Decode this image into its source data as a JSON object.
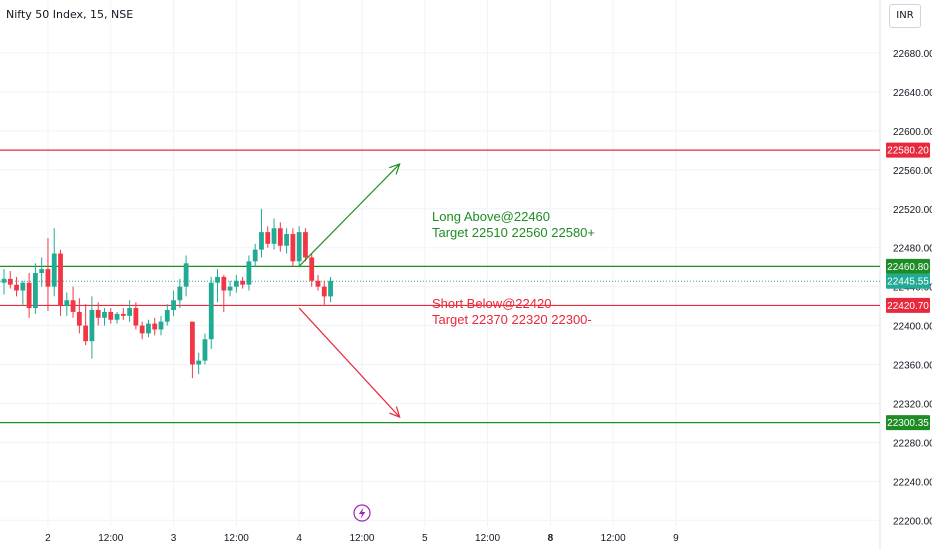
{
  "header": {
    "title": "Nifty 50 Index, 15, NSE",
    "currency_button": "INR"
  },
  "annotations": {
    "long_line1": "Long Above@22460",
    "long_line2": "Target 22510 22560 22580+",
    "short_line1": "Short Below@22420",
    "short_line2": "Target 22370 22320 22300-"
  },
  "event_marker": {
    "icon": "lightning-icon",
    "color": "#9c27b0"
  },
  "chart_data": {
    "type": "candlestick",
    "title": "Nifty 50 Index, 15, NSE",
    "y_axis": {
      "min": 22180,
      "max": 22720,
      "ticks": [
        "22200.00",
        "22240.00",
        "22280.00",
        "22320.00",
        "22360.00",
        "22400.00",
        "22440.00",
        "22480.00",
        "22520.00",
        "22560.00",
        "22600.00",
        "22640.00",
        "22680.00"
      ]
    },
    "x_axis": {
      "ticks": [
        {
          "label": "2",
          "bar": 7,
          "bold": false
        },
        {
          "label": "12:00",
          "bar": 17,
          "bold": false
        },
        {
          "label": "3",
          "bar": 27,
          "bold": false
        },
        {
          "label": "12:00",
          "bar": 37,
          "bold": false
        },
        {
          "label": "4",
          "bar": 47,
          "bold": false
        },
        {
          "label": "12:00",
          "bar": 57,
          "bold": false
        },
        {
          "label": "5",
          "bar": 67,
          "bold": false
        },
        {
          "label": "12:00",
          "bar": 77,
          "bold": false
        },
        {
          "label": "8",
          "bar": 87,
          "bold": true
        },
        {
          "label": "12:00",
          "bar": 97,
          "bold": false
        },
        {
          "label": "9",
          "bar": 107,
          "bold": false
        }
      ]
    },
    "horizontal_lines": [
      {
        "value": 22580.2,
        "label": "22580.20",
        "color": "#e8283c"
      },
      {
        "value": 22460.8,
        "label": "22460.80",
        "color": "#1e8c24"
      },
      {
        "value": 22420.7,
        "label": "22420.70",
        "color": "#e8283c"
      },
      {
        "value": 22300.35,
        "label": "22300.35",
        "color": "#1e8c24"
      }
    ],
    "last_price": {
      "value": 22445.55,
      "label": "22445.55",
      "color": "#22ab94"
    },
    "arrows": [
      {
        "color": "#1e8c24",
        "from_bar": 47,
        "from": 22461,
        "to_bar": 63,
        "to": 22566
      },
      {
        "color": "#e8283c",
        "from_bar": 47,
        "from": 22418,
        "to_bar": 63,
        "to": 22306
      }
    ],
    "colors": {
      "up": "#22ab94",
      "down": "#f23645",
      "grid": "#f0f3fa"
    },
    "candles": [
      {
        "o": 22444,
        "h": 22458,
        "l": 22432,
        "c": 22448
      },
      {
        "o": 22448,
        "h": 22456,
        "l": 22438,
        "c": 22442
      },
      {
        "o": 22442,
        "h": 22450,
        "l": 22430,
        "c": 22436
      },
      {
        "o": 22436,
        "h": 22446,
        "l": 22420,
        "c": 22444
      },
      {
        "o": 22444,
        "h": 22454,
        "l": 22408,
        "c": 22418
      },
      {
        "o": 22418,
        "h": 22464,
        "l": 22412,
        "c": 22454
      },
      {
        "o": 22454,
        "h": 22470,
        "l": 22440,
        "c": 22458
      },
      {
        "o": 22458,
        "h": 22490,
        "l": 22415,
        "c": 22440
      },
      {
        "o": 22440,
        "h": 22500,
        "l": 22430,
        "c": 22474
      },
      {
        "o": 22474,
        "h": 22478,
        "l": 22410,
        "c": 22420
      },
      {
        "o": 22420,
        "h": 22434,
        "l": 22410,
        "c": 22426
      },
      {
        "o": 22426,
        "h": 22440,
        "l": 22408,
        "c": 22414
      },
      {
        "o": 22414,
        "h": 22428,
        "l": 22392,
        "c": 22400
      },
      {
        "o": 22400,
        "h": 22422,
        "l": 22380,
        "c": 22384
      },
      {
        "o": 22384,
        "h": 22430,
        "l": 22366,
        "c": 22416
      },
      {
        "o": 22416,
        "h": 22424,
        "l": 22400,
        "c": 22408
      },
      {
        "o": 22408,
        "h": 22418,
        "l": 22400,
        "c": 22414
      },
      {
        "o": 22414,
        "h": 22418,
        "l": 22402,
        "c": 22406
      },
      {
        "o": 22406,
        "h": 22414,
        "l": 22402,
        "c": 22412
      },
      {
        "o": 22412,
        "h": 22418,
        "l": 22406,
        "c": 22410
      },
      {
        "o": 22410,
        "h": 22426,
        "l": 22404,
        "c": 22418
      },
      {
        "o": 22418,
        "h": 22424,
        "l": 22396,
        "c": 22400
      },
      {
        "o": 22400,
        "h": 22404,
        "l": 22386,
        "c": 22392
      },
      {
        "o": 22392,
        "h": 22406,
        "l": 22388,
        "c": 22402
      },
      {
        "o": 22402,
        "h": 22408,
        "l": 22390,
        "c": 22396
      },
      {
        "o": 22396,
        "h": 22410,
        "l": 22390,
        "c": 22404
      },
      {
        "o": 22404,
        "h": 22422,
        "l": 22400,
        "c": 22416
      },
      {
        "o": 22416,
        "h": 22436,
        "l": 22410,
        "c": 22426
      },
      {
        "o": 22426,
        "h": 22448,
        "l": 22418,
        "c": 22440
      },
      {
        "o": 22440,
        "h": 22472,
        "l": 22430,
        "c": 22464
      },
      {
        "o": 22404,
        "h": 22404,
        "l": 22346,
        "c": 22360
      },
      {
        "o": 22360,
        "h": 22372,
        "l": 22350,
        "c": 22364
      },
      {
        "o": 22364,
        "h": 22392,
        "l": 22360,
        "c": 22386
      },
      {
        "o": 22386,
        "h": 22450,
        "l": 22376,
        "c": 22444
      },
      {
        "o": 22444,
        "h": 22458,
        "l": 22424,
        "c": 22450
      },
      {
        "o": 22450,
        "h": 22452,
        "l": 22414,
        "c": 22436
      },
      {
        "o": 22436,
        "h": 22446,
        "l": 22430,
        "c": 22440
      },
      {
        "o": 22440,
        "h": 22452,
        "l": 22434,
        "c": 22446
      },
      {
        "o": 22446,
        "h": 22450,
        "l": 22438,
        "c": 22442
      },
      {
        "o": 22442,
        "h": 22472,
        "l": 22436,
        "c": 22466
      },
      {
        "o": 22466,
        "h": 22484,
        "l": 22460,
        "c": 22478
      },
      {
        "o": 22478,
        "h": 22520,
        "l": 22470,
        "c": 22496
      },
      {
        "o": 22496,
        "h": 22502,
        "l": 22480,
        "c": 22484
      },
      {
        "o": 22484,
        "h": 22510,
        "l": 22478,
        "c": 22500
      },
      {
        "o": 22500,
        "h": 22506,
        "l": 22476,
        "c": 22482
      },
      {
        "o": 22482,
        "h": 22500,
        "l": 22474,
        "c": 22494
      },
      {
        "o": 22494,
        "h": 22500,
        "l": 22460,
        "c": 22466
      },
      {
        "o": 22466,
        "h": 22502,
        "l": 22460,
        "c": 22496
      },
      {
        "o": 22496,
        "h": 22500,
        "l": 22466,
        "c": 22470
      },
      {
        "o": 22470,
        "h": 22474,
        "l": 22440,
        "c": 22446
      },
      {
        "o": 22446,
        "h": 22452,
        "l": 22436,
        "c": 22440
      },
      {
        "o": 22440,
        "h": 22446,
        "l": 22420,
        "c": 22430
      },
      {
        "o": 22430,
        "h": 22450,
        "l": 22424,
        "c": 22446
      }
    ]
  }
}
